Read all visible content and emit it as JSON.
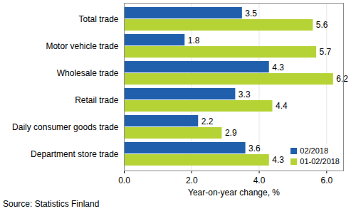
{
  "chart_data": {
    "type": "bar",
    "orientation": "horizontal",
    "categories": [
      "Total trade",
      "Motor vehicle trade",
      "Wholesale trade",
      "Retail trade",
      "Daily consumer goods trade",
      "Department store trade"
    ],
    "series": [
      {
        "name": "02/2018",
        "color": "#1F5FAC",
        "values": [
          3.5,
          1.8,
          4.3,
          3.3,
          2.2,
          3.6
        ]
      },
      {
        "name": "01-02/2018",
        "color": "#B5D334",
        "values": [
          5.6,
          5.7,
          6.2,
          4.4,
          2.9,
          4.3
        ]
      }
    ],
    "xlabel": "Year-on-year change, %",
    "xlim": [
      0,
      6.5
    ],
    "xticks": [
      0,
      2,
      4,
      6
    ],
    "grid": true,
    "data_labels": true,
    "legend": "bottom-right",
    "caption": "Source: Statistics Finland"
  }
}
